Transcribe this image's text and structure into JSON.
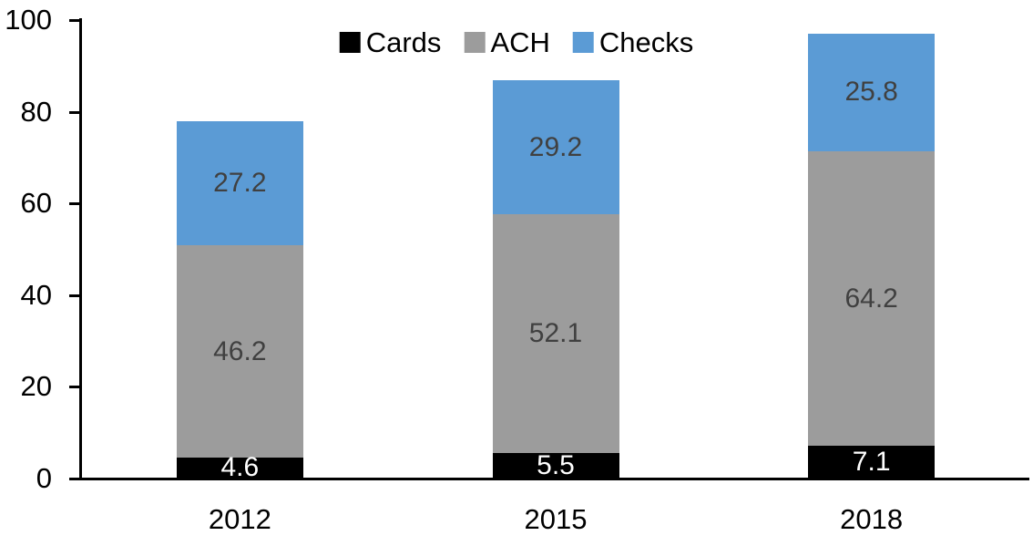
{
  "chart_data": {
    "type": "bar",
    "stacked": true,
    "title": "",
    "xlabel": "",
    "ylabel": "",
    "categories": [
      "2012",
      "2015",
      "2018"
    ],
    "series": [
      {
        "name": "Cards",
        "color": "#000000",
        "label_color": "#ffffff",
        "values": [
          4.6,
          5.5,
          7.1
        ]
      },
      {
        "name": "ACH",
        "color": "#9C9C9C",
        "label_color": "#404040",
        "values": [
          46.2,
          52.1,
          64.2
        ]
      },
      {
        "name": "Checks",
        "color": "#5B9BD5",
        "label_color": "#404040",
        "values": [
          27.2,
          29.2,
          25.8
        ]
      }
    ],
    "totals": [
      78.0,
      86.8,
      97.1
    ],
    "y_axis": {
      "min": 0,
      "max": 100,
      "tick_step": 20,
      "tick_labels": [
        "0",
        "20",
        "40",
        "60",
        "80",
        "100"
      ]
    },
    "axis_color": "#000000",
    "grid": false,
    "legend_position": "top-center",
    "data_labels_shown": true
  }
}
